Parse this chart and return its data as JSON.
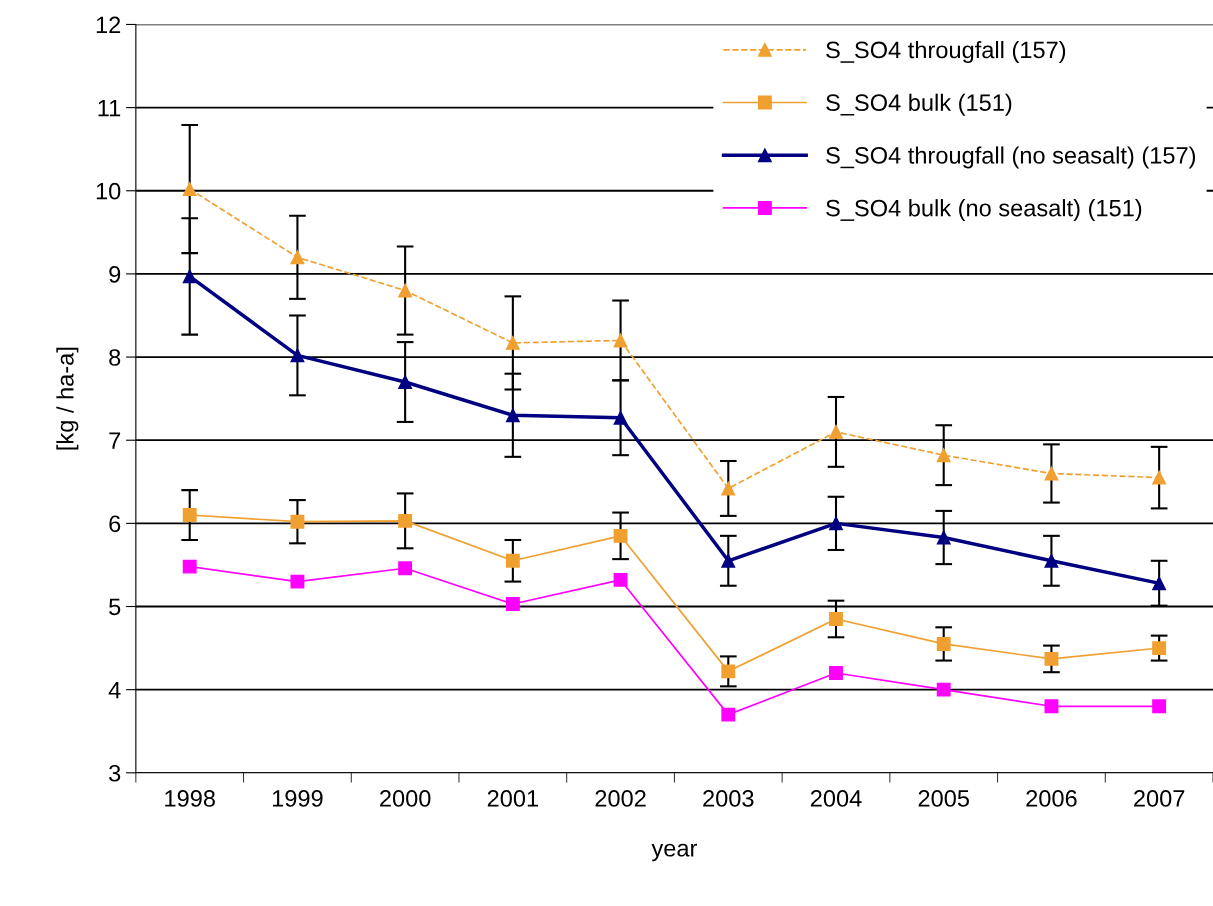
{
  "chart_data": {
    "type": "line",
    "xlabel": "year",
    "ylabel": "[kg / ha-a]",
    "categories": [
      "1998",
      "1999",
      "2000",
      "2001",
      "2002",
      "2003",
      "2004",
      "2005",
      "2006",
      "2007"
    ],
    "ylim": [
      3,
      12
    ],
    "yticks": [
      3,
      4,
      5,
      6,
      7,
      8,
      9,
      10,
      11,
      12
    ],
    "grid": "y",
    "legend": "top right",
    "series": [
      {
        "name": "S_SO4 througfall (157)",
        "color": "#f0a030",
        "marker": "triangle",
        "line_style": "dashed",
        "values": [
          10.02,
          9.2,
          8.8,
          8.17,
          8.2,
          6.42,
          7.1,
          6.82,
          6.6,
          6.55
        ],
        "errors": [
          0.77,
          0.5,
          0.53,
          0.56,
          0.48,
          0.33,
          0.42,
          0.36,
          0.35,
          0.37
        ]
      },
      {
        "name": "S_SO4 bulk (151)",
        "color": "#f0a030",
        "marker": "square",
        "line_style": "solid",
        "values": [
          6.1,
          6.02,
          6.03,
          5.55,
          5.85,
          4.22,
          4.85,
          4.55,
          4.37,
          4.5
        ],
        "errors": [
          0.3,
          0.26,
          0.33,
          0.25,
          0.28,
          0.18,
          0.22,
          0.2,
          0.16,
          0.15
        ]
      },
      {
        "name": "S_SO4 througfall (no seasalt) (157)",
        "color": "#000080",
        "marker": "triangle",
        "line_style": "solid",
        "values": [
          8.97,
          8.02,
          7.7,
          7.3,
          7.27,
          5.55,
          6.0,
          5.83,
          5.55,
          5.28
        ],
        "errors": [
          0.7,
          0.48,
          0.48,
          0.5,
          0.45,
          0.3,
          0.32,
          0.32,
          0.3,
          0.27
        ]
      },
      {
        "name": "S_SO4 bulk (no seasalt) (151)",
        "color": "#ff00ff",
        "marker": "square",
        "line_style": "solid",
        "values": [
          5.48,
          5.3,
          5.46,
          5.03,
          5.32,
          3.7,
          4.2,
          4.0,
          3.8,
          3.8
        ]
      }
    ]
  }
}
